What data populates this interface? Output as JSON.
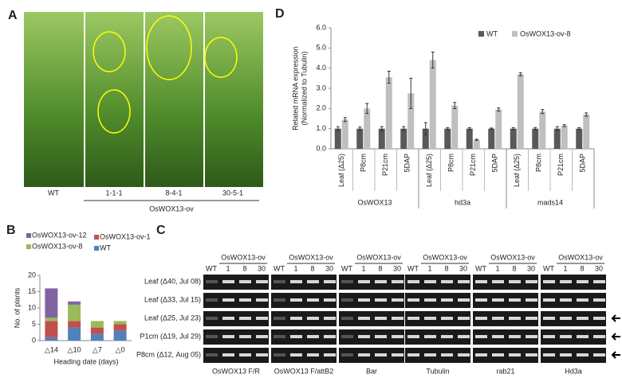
{
  "panel_labels": [
    "A",
    "B",
    "C",
    "D"
  ],
  "panel_a": {
    "plants": [
      "WT",
      "1-1-1",
      "8-4-1",
      "30-5-1"
    ],
    "group_label": "OsWOX13-ov"
  },
  "panel_c": {
    "group_header": "OsWOX13-ov",
    "lanes": [
      "WT",
      "1",
      "8",
      "30"
    ],
    "rows": [
      "Leaf (Δ40, Jul 08)",
      "Leaf (Δ33, Jul 15)",
      "Leaf (Δ25, Jul 23)",
      "P1cm (Δ19, Jul 29)",
      "P8cm (Δ12, Aug 05)"
    ],
    "genes": [
      "OsWOX13 F/R",
      "OsWOX13 F/attB2",
      "Bar",
      "Tubulin",
      "rab21",
      "Hd3a"
    ]
  },
  "chart_data": [
    {
      "type": "stacked_bar",
      "x_label": "Heading date (days)",
      "y_label": "No. of plants",
      "categories": [
        "△14",
        "△10",
        "△7",
        "△0"
      ],
      "series": [
        {
          "name": "WT",
          "color": "#4f81bd",
          "values": [
            1,
            4,
            2,
            3
          ]
        },
        {
          "name": "OsWOX13-ov-1",
          "color": "#c0504d",
          "values": [
            5,
            2,
            2,
            2
          ]
        },
        {
          "name": "OsWOX13-ov-8",
          "color": "#9bbb59",
          "values": [
            1,
            5,
            2,
            1
          ]
        },
        {
          "name": "OsWOX13-ov-12",
          "color": "#8064a2",
          "values": [
            9,
            1,
            0,
            0
          ]
        }
      ],
      "ylim": [
        0,
        20
      ],
      "yticks": [
        0,
        5,
        10,
        15,
        20
      ]
    },
    {
      "type": "bar",
      "y_label": [
        "Related mRNA expression",
        "(Normalized to Tubulin)"
      ],
      "categories": [
        "Leaf (Δ25)",
        "P8cm",
        "P21cm",
        "5DAP",
        "Leaf (Δ25)",
        "P8cm",
        "P21cm",
        "5DAP",
        "Leaf (Δ25)",
        "P8cm",
        "P21cm",
        "5DAP"
      ],
      "group_labels": [
        "OsWOX13",
        "hd3a",
        "mads14"
      ],
      "series": [
        {
          "name": "WT",
          "color": "#595959",
          "values": [
            1.0,
            1.0,
            1.0,
            1.0,
            1.0,
            1.0,
            1.0,
            1.0,
            1.0,
            1.0,
            1.0,
            1.0
          ],
          "errors": [
            0.1,
            0.08,
            0.1,
            0.1,
            0.3,
            0.05,
            0.05,
            0.03,
            0.05,
            0.05,
            0.1,
            0.05
          ]
        },
        {
          "name": "OsWOX13-ov-8",
          "color": "#bfbfbf",
          "values": [
            1.45,
            2.0,
            3.55,
            2.75,
            4.4,
            2.15,
            0.45,
            1.95,
            3.7,
            1.85,
            1.15,
            1.7
          ],
          "errors": [
            0.1,
            0.25,
            0.3,
            0.75,
            0.4,
            0.15,
            0.03,
            0.08,
            0.08,
            0.1,
            0.05,
            0.08
          ]
        }
      ],
      "ylim": [
        0,
        6
      ],
      "yticks": [
        {
          "value": 0,
          "label": "0.0"
        },
        {
          "value": 1,
          "label": "1.0"
        },
        {
          "value": 2,
          "label": "2.0"
        },
        {
          "value": 3,
          "label": "3.0"
        },
        {
          "value": 4,
          "label": "4.0"
        },
        {
          "value": 5,
          "label": "5.0"
        },
        {
          "value": 6,
          "label": "6.0"
        }
      ]
    }
  ]
}
